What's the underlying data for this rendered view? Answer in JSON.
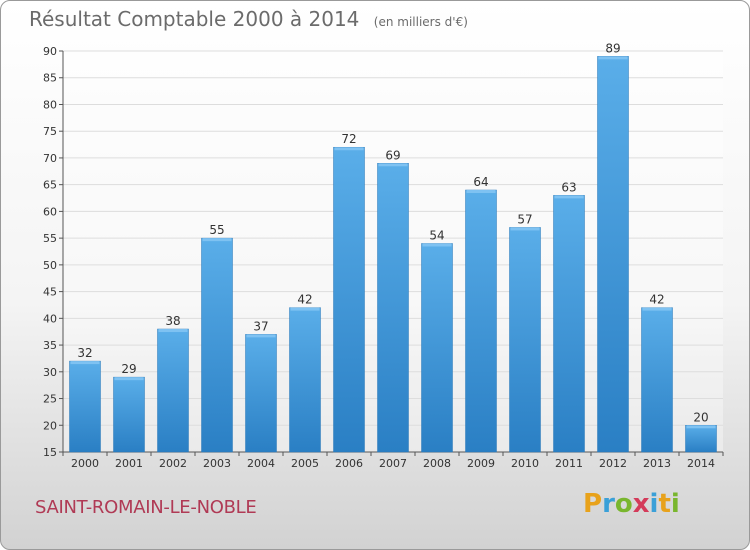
{
  "title": "Résultat Comptable 2000 à 2014",
  "unit_note": "(en milliers d'€)",
  "commune": "SAINT-ROMAIN-LE-NOBLE",
  "logo": {
    "letters": [
      "P",
      "r",
      "o",
      "x",
      "i",
      "t",
      "i"
    ],
    "colors": [
      "#e8a21b",
      "#3aa0d8",
      "#79b62e",
      "#d43b5a",
      "#3aa0d8",
      "#e8a21b",
      "#79b62e"
    ]
  },
  "colors": {
    "bar_top": "#5aaee9",
    "bar_bottom": "#2a7fc4",
    "grid": "#dddddd"
  },
  "chart_data": {
    "type": "bar",
    "title": "Résultat Comptable 2000 à 2014",
    "categories": [
      "2000",
      "2001",
      "2002",
      "2003",
      "2004",
      "2005",
      "2006",
      "2007",
      "2008",
      "2009",
      "2010",
      "2011",
      "2012",
      "2013",
      "2014"
    ],
    "values": [
      32,
      29,
      38,
      55,
      37,
      42,
      72,
      69,
      54,
      64,
      57,
      63,
      89,
      42,
      20
    ],
    "ylim": [
      15,
      90
    ],
    "yticks": [
      15,
      20,
      25,
      30,
      35,
      40,
      45,
      50,
      55,
      60,
      65,
      70,
      75,
      80,
      85,
      90
    ],
    "grid": true
  }
}
